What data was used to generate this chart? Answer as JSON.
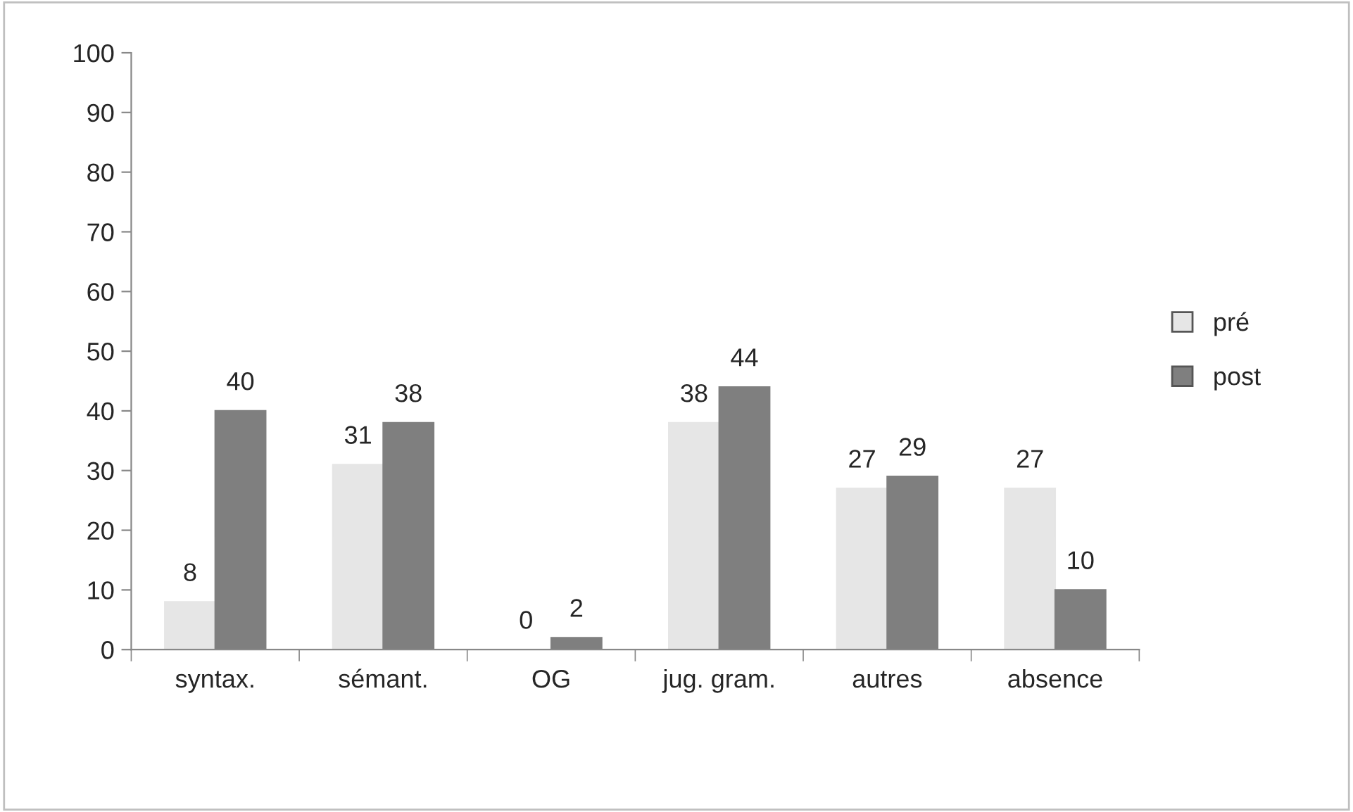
{
  "chart_data": {
    "type": "bar",
    "categories": [
      "syntax.",
      "sémant.",
      "OG",
      "jug. gram.",
      "autres",
      "absence"
    ],
    "series": [
      {
        "name": "pré",
        "color": "#e6e6e6",
        "values": [
          8,
          31,
          0,
          38,
          27,
          27
        ]
      },
      {
        "name": "post",
        "color": "#7f7f7f",
        "values": [
          40,
          38,
          2,
          44,
          29,
          10
        ]
      }
    ],
    "ylim": [
      0,
      100
    ],
    "yticks": [
      0,
      10,
      20,
      30,
      40,
      50,
      60,
      70,
      80,
      90,
      100
    ],
    "data_labels": true,
    "legend": "right",
    "grid": false
  }
}
